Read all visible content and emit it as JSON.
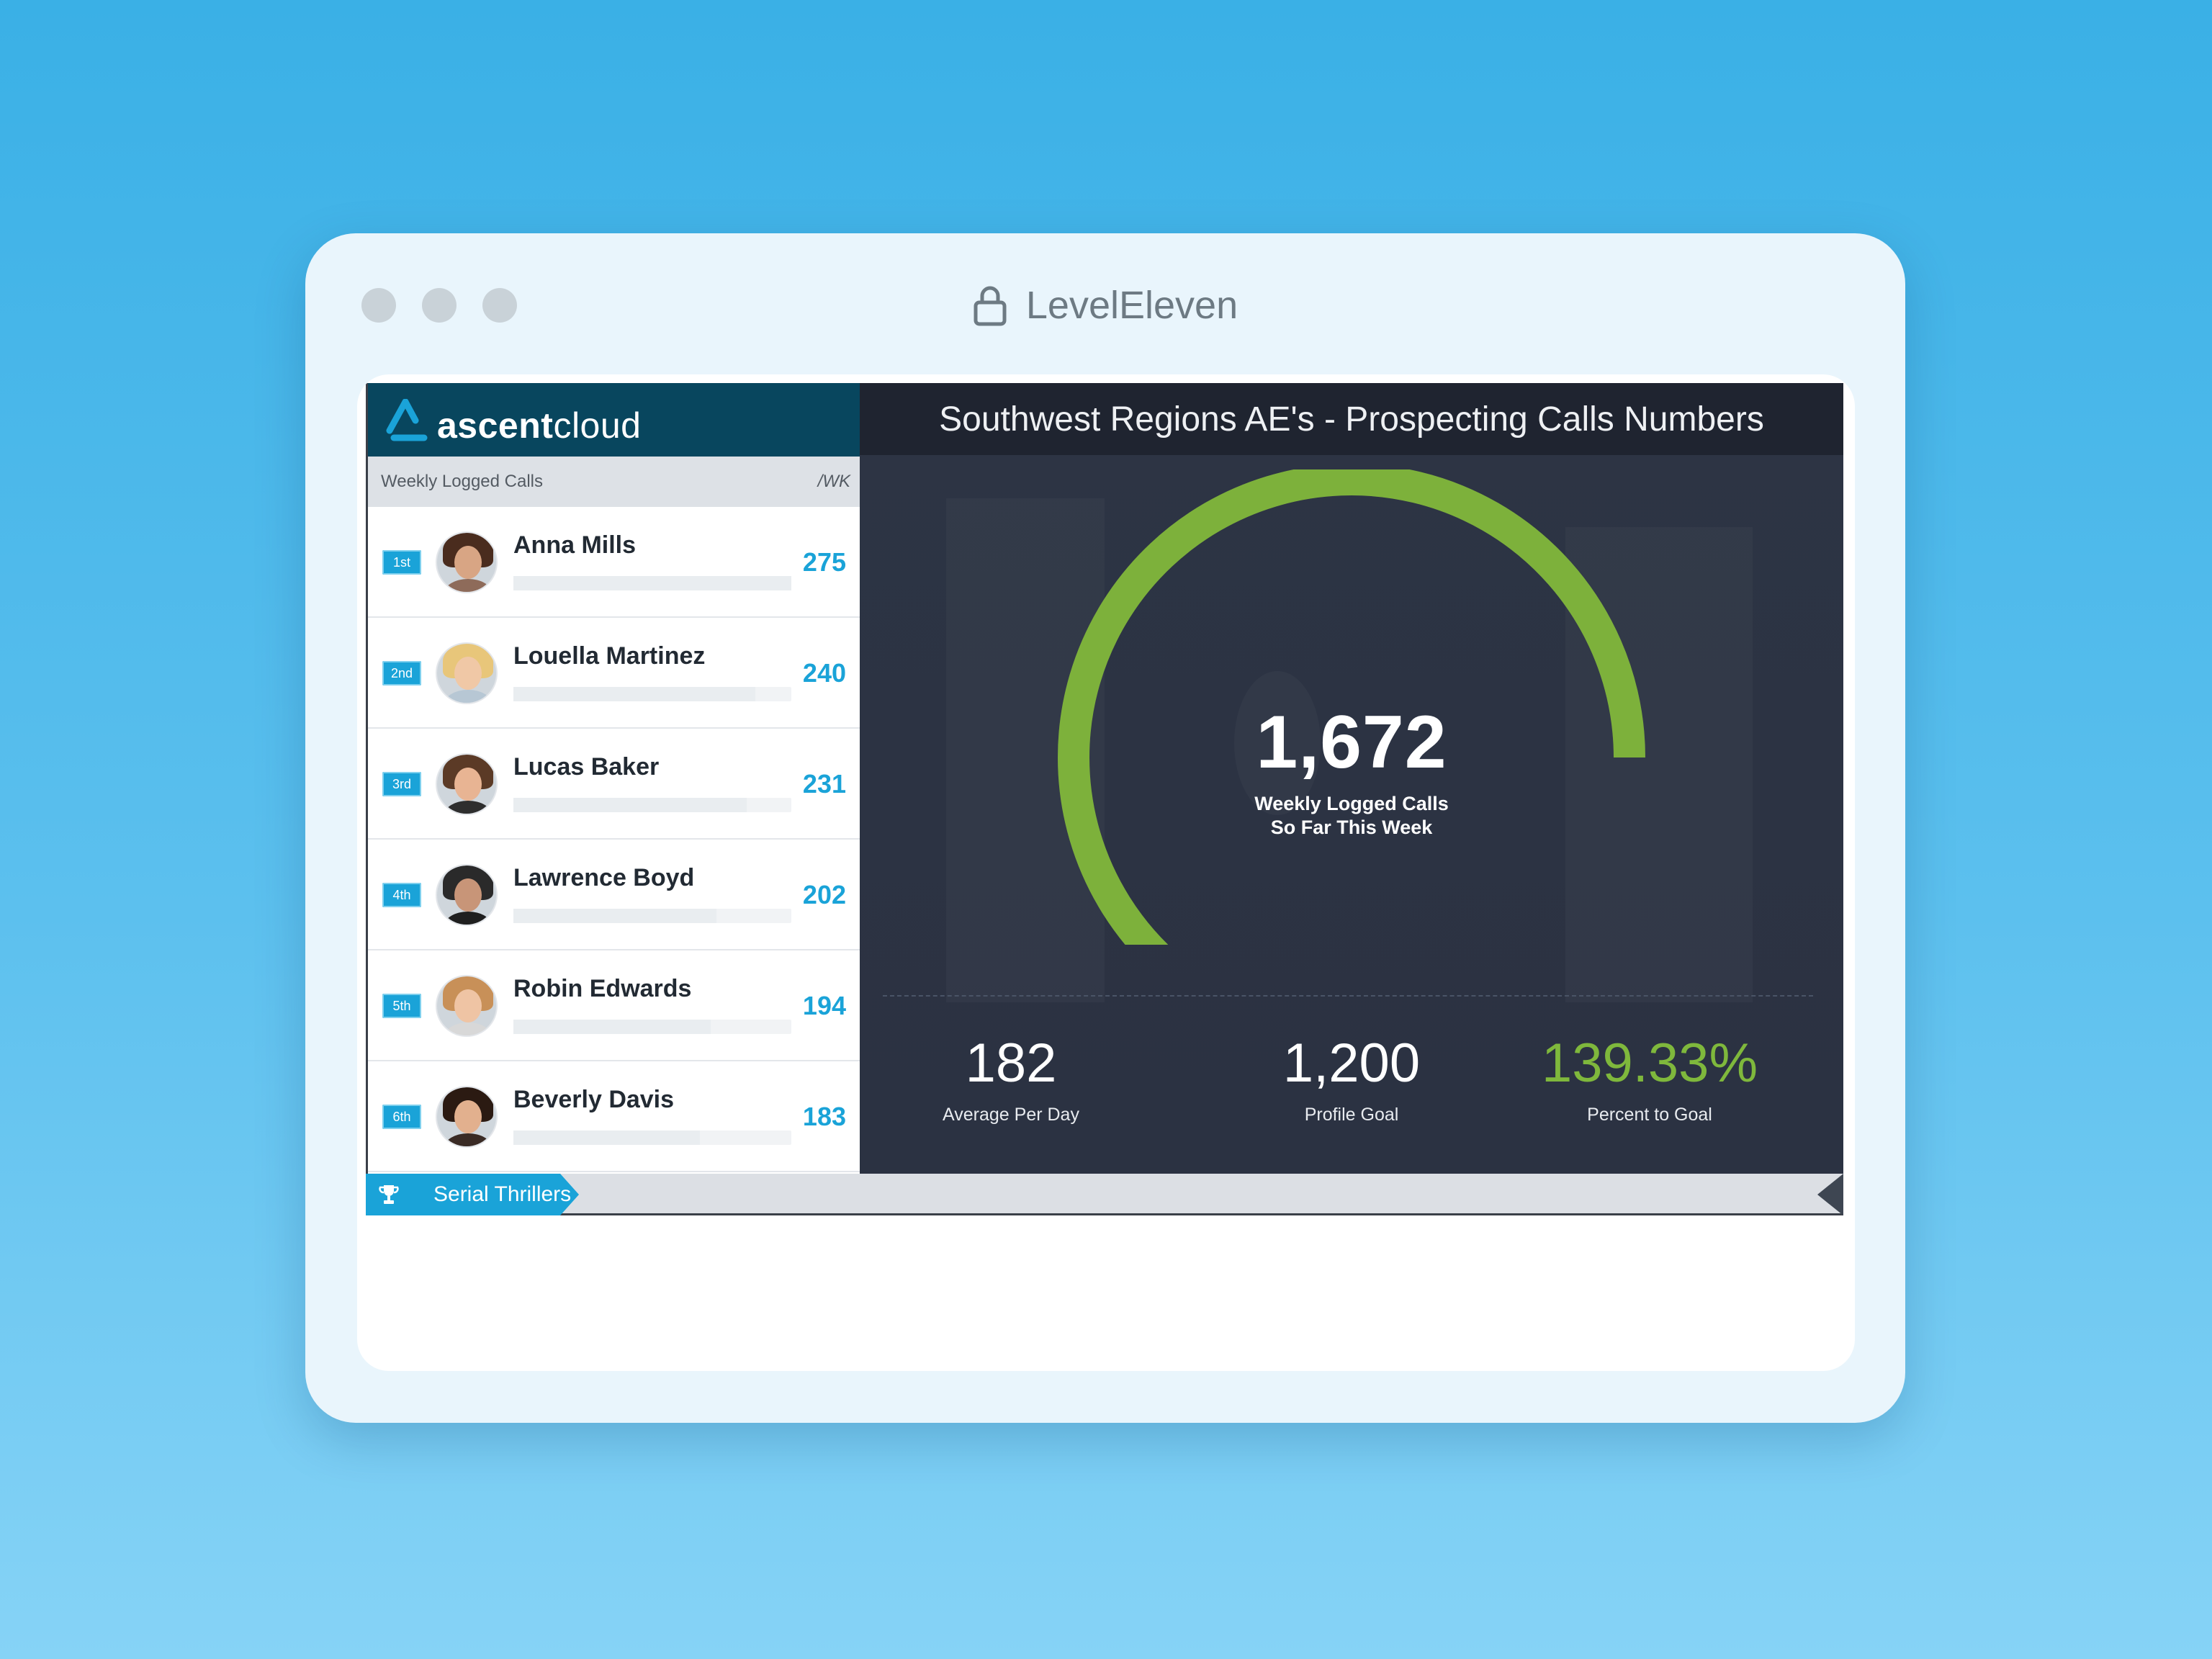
{
  "window": {
    "title": "LevelEleven"
  },
  "brand": {
    "name_bold": "ascent",
    "name_rest": "cloud"
  },
  "leaderboard": {
    "header_label": "Weekly Logged Calls",
    "header_unit": "/WK",
    "rows": [
      {
        "rank": "1st",
        "name": "Anna Mills",
        "value": "275",
        "progress": 1.0,
        "skin": "#d8a584",
        "hair": "#4a2c1e",
        "shirt": "#8e6b5a"
      },
      {
        "rank": "2nd",
        "name": "Louella Martinez",
        "value": "240",
        "progress": 0.87,
        "skin": "#f0c8a6",
        "hair": "#e8c67a",
        "shirt": "#b7c7d4"
      },
      {
        "rank": "3rd",
        "name": "Lucas Baker",
        "value": "231",
        "progress": 0.84,
        "skin": "#e8b493",
        "hair": "#5b3a26",
        "shirt": "#2e2e2e"
      },
      {
        "rank": "4th",
        "name": "Lawrence Boyd",
        "value": "202",
        "progress": 0.73,
        "skin": "#c89578",
        "hair": "#2a2a2a",
        "shirt": "#1f1f1f"
      },
      {
        "rank": "5th",
        "name": "Robin Edwards",
        "value": "194",
        "progress": 0.71,
        "skin": "#efc4a4",
        "hair": "#c89058",
        "shirt": "#d8d8d8"
      },
      {
        "rank": "6th",
        "name": "Beverly Davis",
        "value": "183",
        "progress": 0.67,
        "skin": "#e2b08e",
        "hair": "#2b1a12",
        "shirt": "#3a2b25"
      }
    ]
  },
  "panel": {
    "title": "Southwest Regions AE's - Prospecting Calls Numbers",
    "gauge": {
      "value": "1,672",
      "label_line1": "Weekly Logged Calls",
      "label_line2": "So Far This Week",
      "fill_fraction": 1.0,
      "color": "#7db13b"
    },
    "stats": [
      {
        "value": "182",
        "label": "Average Per Day",
        "highlight": false
      },
      {
        "value": "1,200",
        "label": "Profile Goal",
        "highlight": false
      },
      {
        "value": "139.33%",
        "label": "Percent to Goal",
        "highlight": true
      }
    ]
  },
  "ticker": {
    "label": "Serial Thrillers",
    "icon": "trophy-icon"
  }
}
